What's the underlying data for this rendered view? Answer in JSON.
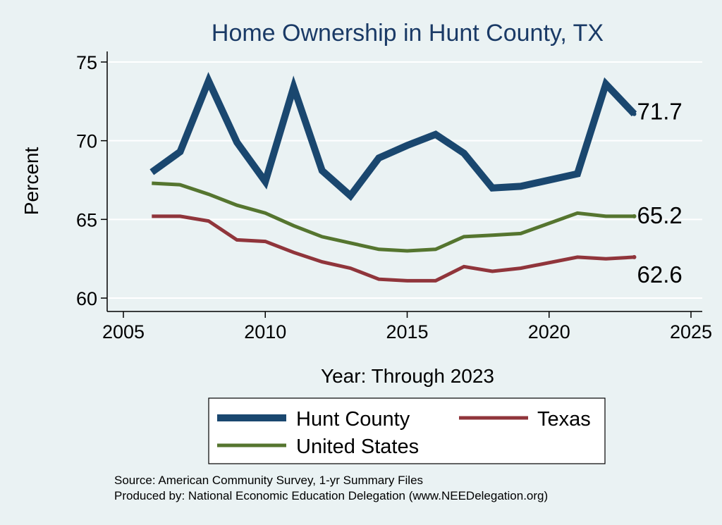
{
  "chart_data": {
    "type": "line",
    "title": "Home Ownership in Hunt County, TX",
    "xlabel": "Year: Through 2023",
    "ylabel": "Percent",
    "xlim": [
      2005,
      2025
    ],
    "ylim": [
      60,
      75
    ],
    "xticks": [
      2005,
      2010,
      2015,
      2020,
      2025
    ],
    "yticks": [
      60,
      65,
      70,
      75
    ],
    "grid": true,
    "legend_position": "bottom",
    "series": [
      {
        "name": "Hunt County",
        "color": "#1a476f",
        "x": [
          2006,
          2007,
          2008,
          2009,
          2010,
          2011,
          2012,
          2013,
          2014,
          2015,
          2016,
          2017,
          2018,
          2019,
          2021,
          2022,
          2023
        ],
        "values": [
          68.0,
          69.3,
          73.8,
          69.9,
          67.4,
          73.4,
          68.1,
          66.5,
          68.9,
          69.7,
          70.4,
          69.2,
          67.0,
          67.1,
          67.9,
          73.6,
          71.7
        ],
        "end_label": "71.7"
      },
      {
        "name": "Texas",
        "color": "#90353b",
        "x": [
          2006,
          2007,
          2008,
          2009,
          2010,
          2011,
          2012,
          2013,
          2014,
          2015,
          2016,
          2017,
          2018,
          2019,
          2021,
          2022,
          2023
        ],
        "values": [
          65.2,
          65.2,
          64.9,
          63.7,
          63.6,
          62.9,
          62.3,
          61.9,
          61.2,
          61.1,
          61.1,
          62.0,
          61.7,
          61.9,
          62.6,
          62.5,
          62.6
        ],
        "end_label": "62.6"
      },
      {
        "name": "United States",
        "color": "#55752f",
        "x": [
          2006,
          2007,
          2008,
          2009,
          2010,
          2011,
          2012,
          2013,
          2014,
          2015,
          2016,
          2017,
          2018,
          2019,
          2021,
          2022,
          2023
        ],
        "values": [
          67.3,
          67.2,
          66.6,
          65.9,
          65.4,
          64.6,
          63.9,
          63.5,
          63.1,
          63.0,
          63.1,
          63.9,
          64.0,
          64.1,
          65.4,
          65.2,
          65.2
        ],
        "end_label": "65.2"
      }
    ],
    "notes": [
      "Source: American Community Survey, 1-yr Summary Files",
      "Produced by: National Economic Education Delegation (www.NEEDelegation.org)"
    ]
  }
}
